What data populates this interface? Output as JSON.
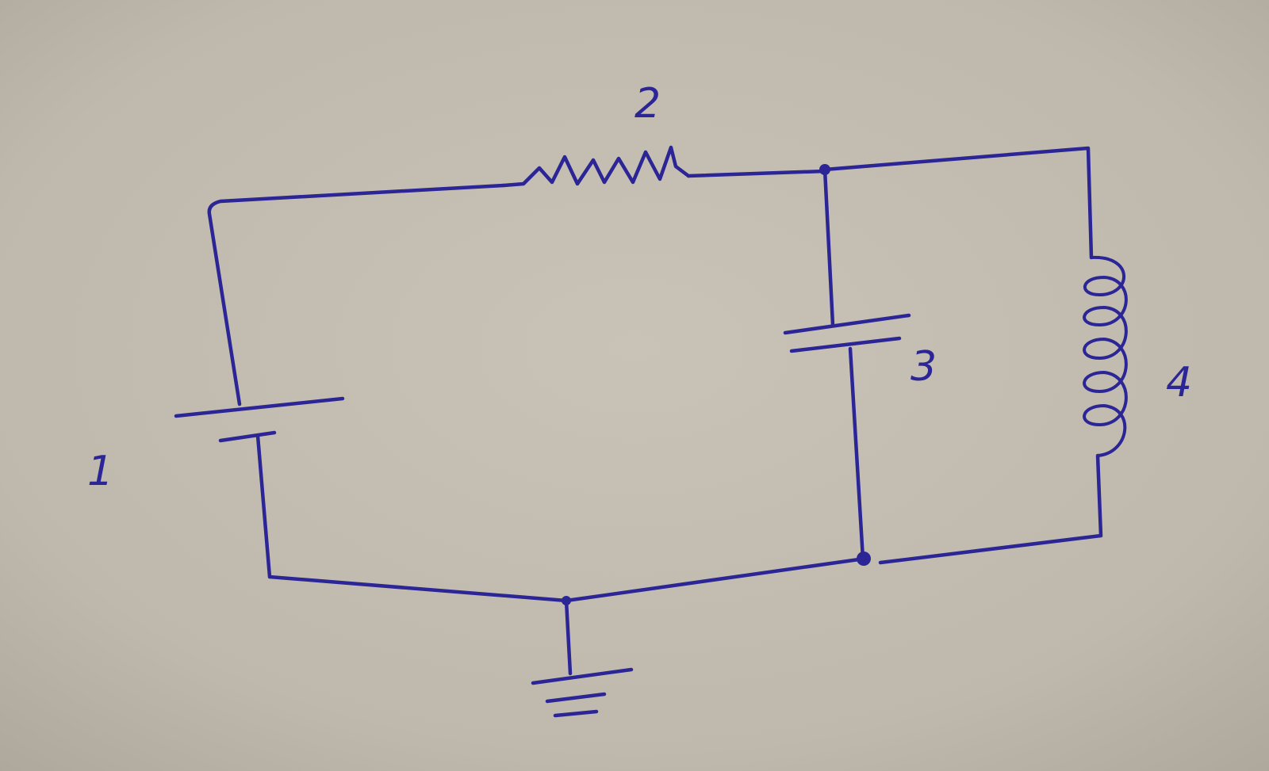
{
  "diagram": {
    "labels": {
      "battery": "1",
      "resistor": "2",
      "capacitor": "3",
      "inductor": "4"
    },
    "colors": {
      "ink": "#2b2596",
      "paper": "#c2bcb0"
    }
  }
}
